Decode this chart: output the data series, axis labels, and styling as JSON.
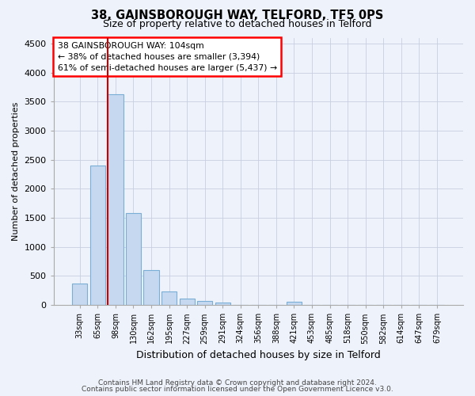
{
  "title1": "38, GAINSBOROUGH WAY, TELFORD, TF5 0PS",
  "title2": "Size of property relative to detached houses in Telford",
  "xlabel": "Distribution of detached houses by size in Telford",
  "ylabel": "Number of detached properties",
  "footer1": "Contains HM Land Registry data © Crown copyright and database right 2024.",
  "footer2": "Contains public sector information licensed under the Open Government Licence v3.0.",
  "categories": [
    "33sqm",
    "65sqm",
    "98sqm",
    "130sqm",
    "162sqm",
    "195sqm",
    "227sqm",
    "259sqm",
    "291sqm",
    "324sqm",
    "356sqm",
    "388sqm",
    "421sqm",
    "453sqm",
    "485sqm",
    "518sqm",
    "550sqm",
    "582sqm",
    "614sqm",
    "647sqm",
    "679sqm"
  ],
  "values": [
    370,
    2400,
    3620,
    1580,
    600,
    230,
    110,
    65,
    40,
    0,
    0,
    0,
    60,
    0,
    0,
    0,
    0,
    0,
    0,
    0,
    0
  ],
  "bar_color": "#c5d8f0",
  "bar_edge_color": "#7aaed6",
  "grid_color": "#c8cfe0",
  "vline_color": "#cc0000",
  "annotation_line1": "38 GAINSBOROUGH WAY: 104sqm",
  "annotation_line2": "← 38% of detached houses are smaller (3,394)",
  "annotation_line3": "61% of semi-detached houses are larger (5,437) →",
  "annotation_box_color": "red",
  "ylim": [
    0,
    4600
  ],
  "yticks": [
    0,
    500,
    1000,
    1500,
    2000,
    2500,
    3000,
    3500,
    4000,
    4500
  ],
  "bg_color": "#eef2fa",
  "plot_bg_color": "#eef2fa",
  "vline_bar_index": 2,
  "bar_width": 0.85
}
